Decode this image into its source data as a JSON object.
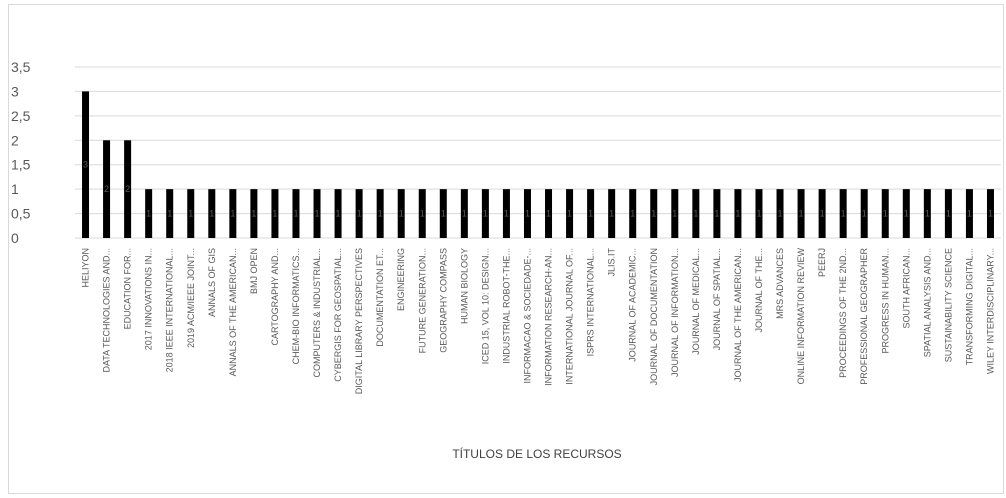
{
  "chart_data": {
    "type": "bar",
    "title": "",
    "xlabel": "TÍTULOS DE LOS RECURSOS",
    "ylabel": "",
    "ylim": [
      0,
      3.5
    ],
    "yticks": [
      "0",
      "0,5",
      "1",
      "1,5",
      "2",
      "2,5",
      "3",
      "3,5"
    ],
    "grid": true,
    "legend": "none",
    "bar_color": "#000000",
    "grid_color": "#d9d9d9",
    "categories": [
      "HELIYON",
      "DATA TECHNOLOGIES AND...",
      "EDUCATION FOR...",
      "2017 INNOVATIONS IN...",
      "2018 IEEE INTERNATIONAL...",
      "2019 ACM/IEEE JOINT...",
      "ANNALS OF GIS",
      "ANNALS OF THE AMERICAN...",
      "BMJ OPEN",
      "CARTOGRAPHY AND...",
      "CHEM-BIO INFORMATICS...",
      "COMPUTERS & INDUSTRIAL...",
      "CYBERGIS FOR GEOSPATIAL...",
      "DIGITAL LIBRARY PERSPECTIVES",
      "DOCUMENTATION ET...",
      "ENGINEERING",
      "FUTURE GENERATION...",
      "GEOGRAPHY COMPASS",
      "HUMAN BIOLOGY",
      "ICED 15, VOL 10: DESIGN...",
      "INDUSTRIAL ROBOT-THE...",
      "INFORMACAO & SOCIEDADE-...",
      "INFORMATION RESEARCH-AN...",
      "INTERNATIONAL JOURNAL OF...",
      "ISPRS INTERNATIONAL...",
      "JLIS.IT",
      "JOURNAL OF ACADEMIC...",
      "JOURNAL OF DOCUMENTATION",
      "JOURNAL OF INFORMATION...",
      "JOURNAL OF MEDICAL...",
      "JOURNAL OF SPATIAL...",
      "JOURNAL OF THE AMERICAN...",
      "JOURNAL OF THE...",
      "MRS ADVANCES",
      "ONLINE INFORMATION REVIEW",
      "PEERJ",
      "PROCEEDINGS OF THE 2ND...",
      "PROFESSIONAL GEOGRAPHER",
      "PROGRESS IN HUMAN...",
      "SOUTH AFRICAN...",
      "SPATIAL ANALYSIS AND...",
      "SUSTAINABILITY SCIENCE",
      "TRANSFORMING DIGITAL...",
      "WILEY INTERDISCIPLINARY..."
    ],
    "values": [
      3,
      2,
      2,
      1,
      1,
      1,
      1,
      1,
      1,
      1,
      1,
      1,
      1,
      1,
      1,
      1,
      1,
      1,
      1,
      1,
      1,
      1,
      1,
      1,
      1,
      1,
      1,
      1,
      1,
      1,
      1,
      1,
      1,
      1,
      1,
      1,
      1,
      1,
      1,
      1,
      1,
      1,
      1,
      1
    ],
    "data_labels": [
      "3",
      "2",
      "2",
      "1",
      "1",
      "1",
      "1",
      "1",
      "1",
      "1",
      "1",
      "1",
      "1",
      "1",
      "1",
      "1",
      "1",
      "1",
      "1",
      "1",
      "1",
      "1",
      "1",
      "1",
      "1",
      "1",
      "1",
      "1",
      "1",
      "1",
      "1",
      "1",
      "1",
      "1",
      "1",
      "1",
      "1",
      "1",
      "1",
      "1",
      "1",
      "1",
      "1",
      "1"
    ]
  }
}
